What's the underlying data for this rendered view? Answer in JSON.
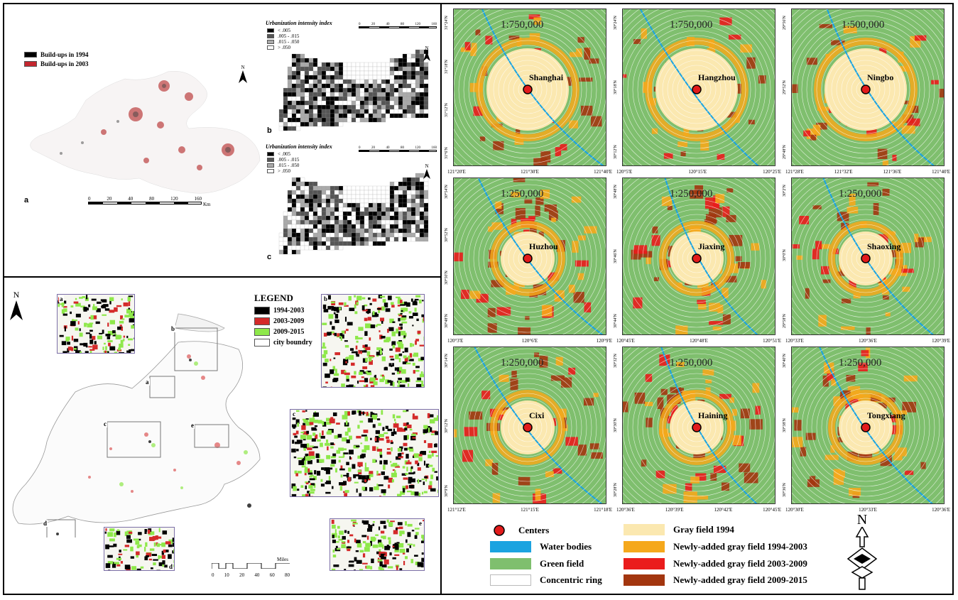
{
  "panel_a": {
    "legend": [
      {
        "label": "Build-ups in 1994",
        "color": "#000000"
      },
      {
        "label": "Build-ups in 2003",
        "color": "#c4262e"
      }
    ],
    "letter": "a",
    "scale_ticks": [
      "0",
      "20",
      "40",
      "80",
      "120",
      "160"
    ],
    "scale_unit": "Km",
    "north": "N"
  },
  "panel_b": {
    "title": "Urbanization intensity index",
    "classes": [
      {
        "label": "< .005",
        "color": "#000000"
      },
      {
        "label": ".005 - .015",
        "color": "#555555"
      },
      {
        "label": ".015 - .050",
        "color": "#aaaaaa"
      },
      {
        "label": "> .050",
        "color": "#ffffff"
      }
    ],
    "scale_ticks": [
      "0",
      "20",
      "40",
      "80",
      "120",
      "160"
    ],
    "letter": "b",
    "north": "N"
  },
  "panel_c": {
    "title": "Urbanization intensity index",
    "classes": [
      {
        "label": "< .005",
        "color": "#000000"
      },
      {
        "label": ".005 - .015",
        "color": "#555555"
      },
      {
        "label": ".015 - .050",
        "color": "#aaaaaa"
      },
      {
        "label": "> .050",
        "color": "#ffffff"
      }
    ],
    "scale_ticks": [
      "0",
      "20",
      "40",
      "80",
      "120",
      "160"
    ],
    "letter": "c",
    "north": "N"
  },
  "lower_left": {
    "legend_title": "LEGEND",
    "legend": [
      {
        "label": "1994-2003",
        "color": "#000000"
      },
      {
        "label": "2003-2009",
        "color": "#d42a2a"
      },
      {
        "label": "2009-2015",
        "color": "#8ee84a"
      },
      {
        "label": "city boundry",
        "color": "#ffffff"
      }
    ],
    "insets": [
      "a",
      "b",
      "c",
      "d",
      "e"
    ],
    "scale_ticks": [
      "0",
      "10",
      "20",
      "40",
      "60",
      "80"
    ],
    "scale_unit": "Miles",
    "north": "N"
  },
  "city_maps": [
    {
      "city": "Shanghai",
      "scale": "1:750,000",
      "xticks": [
        "121°20'E",
        "121°30'E",
        "121°40'E"
      ],
      "yticks": [
        "31°6'N",
        "31°12'N",
        "31°18'N",
        "31°24'N"
      ]
    },
    {
      "city": "Hangzhou",
      "scale": "1:750,000",
      "xticks": [
        "120°5'E",
        "120°15'E",
        "120°25'E"
      ],
      "yticks": [
        "30°12'N",
        "30°18'N",
        "30°24'N"
      ]
    },
    {
      "city": "Ningbo",
      "scale": "1:500,000",
      "xticks": [
        "121°28'E",
        "121°32'E",
        "121°36'E",
        "121°40'E"
      ],
      "yticks": [
        "29°48'N",
        "29°52'N",
        "29°56'N"
      ]
    },
    {
      "city": "Huzhou",
      "scale": "1:250,000",
      "xticks": [
        "120°3'E",
        "120°6'E",
        "120°9'E"
      ],
      "yticks": [
        "30°48'N",
        "30°50'N",
        "30°52'N",
        "30°54'N"
      ]
    },
    {
      "city": "Jiaxing",
      "scale": "1:250,000",
      "xticks": [
        "120°45'E",
        "120°48'E",
        "120°51'E"
      ],
      "yticks": [
        "30°44'N",
        "30°46'N",
        "30°48'N"
      ]
    },
    {
      "city": "Shaoxing",
      "scale": "1:250,000",
      "xticks": [
        "120°33'E",
        "120°36'E",
        "120°39'E"
      ],
      "yticks": [
        "29°58'N",
        "30°0'N",
        "30°2'N"
      ]
    },
    {
      "city": "Cixi",
      "scale": "1:250,000",
      "xticks": [
        "121°12'E",
        "121°15'E",
        "121°18'E"
      ],
      "yticks": [
        "30°9'N",
        "30°12'N",
        "30°14'N"
      ]
    },
    {
      "city": "Haining",
      "scale": "1:250,000",
      "xticks": [
        "120°36'E",
        "120°39'E",
        "120°42'E",
        "120°45'E"
      ],
      "yticks": [
        "30°28'N",
        "30°30'N",
        "30°32'N"
      ]
    },
    {
      "city": "Tongxiang",
      "scale": "1:250,000",
      "xticks": [
        "120°30'E",
        "120°33'E",
        "120°36'E"
      ],
      "yticks": [
        "30°36'N",
        "30°38'N",
        "30°40'N"
      ]
    }
  ],
  "bottom_legend": [
    {
      "label": "Centers",
      "color": "#e21b1b",
      "kind": "circle"
    },
    {
      "label": "Water bodies",
      "color": "#1ba3e0",
      "kind": "box"
    },
    {
      "label": "Green field",
      "color": "#7fbf6e",
      "kind": "box"
    },
    {
      "label": "Concentric ring",
      "color": "#ffffff",
      "kind": "box"
    },
    {
      "label": "Gray field 1994",
      "color": "#fbe8b0",
      "kind": "box"
    },
    {
      "label": "Newly-added gray field 1994-2003",
      "color": "#f5a81c",
      "kind": "box"
    },
    {
      "label": "Newly-added gray field 2003-2009",
      "color": "#ea1c1c",
      "kind": "box"
    },
    {
      "label": "Newly-added gray field 2009-2015",
      "color": "#a3360f",
      "kind": "box"
    }
  ],
  "north_label": "N"
}
